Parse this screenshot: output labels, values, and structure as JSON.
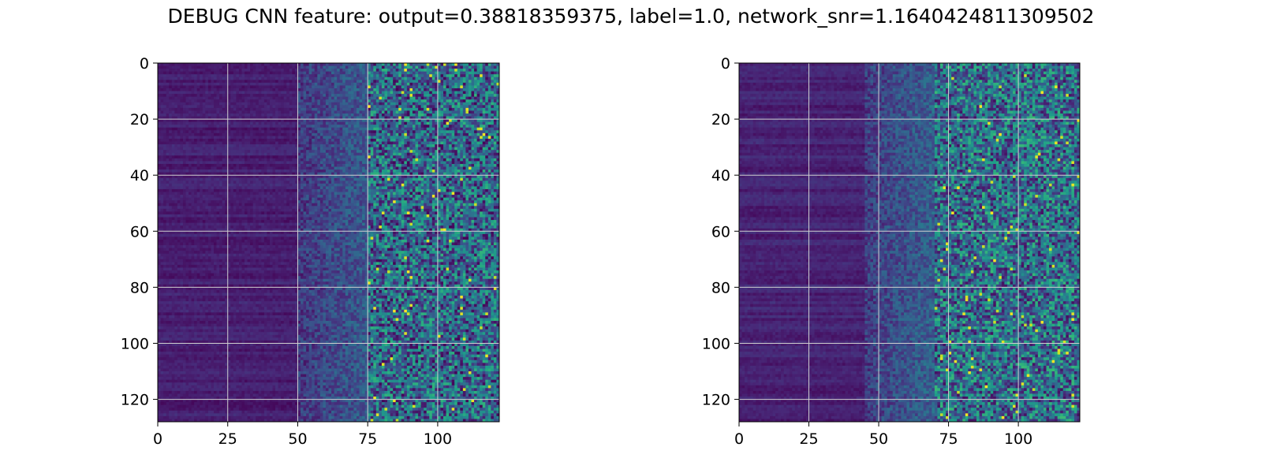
{
  "figure": {
    "title": "DEBUG CNN feature: output=0.38818359375, label=1.0, network_snr=1.1640424811309502"
  },
  "colormap": {
    "name": "viridis",
    "stops": [
      "#440154",
      "#482878",
      "#3e4989",
      "#31688e",
      "#26828e",
      "#1f9e89",
      "#35b779",
      "#6ece58",
      "#b5de2b",
      "#fde725"
    ]
  },
  "chart_data": [
    {
      "type": "heatmap",
      "title": "",
      "xlabel": "",
      "ylabel": "",
      "rows": 128,
      "cols": 122,
      "xlim": [
        0,
        122
      ],
      "ylim": [
        128,
        0
      ],
      "xticks": [
        0,
        25,
        50,
        75,
        100
      ],
      "yticks": [
        0,
        20,
        40,
        60,
        80,
        100,
        120
      ],
      "grid": true,
      "colormap": "viridis",
      "description_pattern": {
        "low_band_cols": [
          0,
          50
        ],
        "low_band_level": 0.08,
        "mid_band_cols": [
          50,
          75
        ],
        "mid_band_level": 0.2,
        "high_band_cols": [
          75,
          122
        ],
        "high_band_level": 0.38
      }
    },
    {
      "type": "heatmap",
      "title": "",
      "xlabel": "",
      "ylabel": "",
      "rows": 128,
      "cols": 122,
      "xlim": [
        0,
        122
      ],
      "ylim": [
        128,
        0
      ],
      "xticks": [
        0,
        25,
        50,
        75,
        100
      ],
      "yticks": [
        0,
        20,
        40,
        60,
        80,
        100,
        120
      ],
      "grid": true,
      "colormap": "viridis",
      "description_pattern": {
        "low_band_cols": [
          0,
          45
        ],
        "low_band_level": 0.09,
        "mid_band_cols": [
          45,
          70
        ],
        "mid_band_level": 0.22,
        "high_band_cols": [
          70,
          122
        ],
        "high_band_level": 0.42
      }
    }
  ]
}
